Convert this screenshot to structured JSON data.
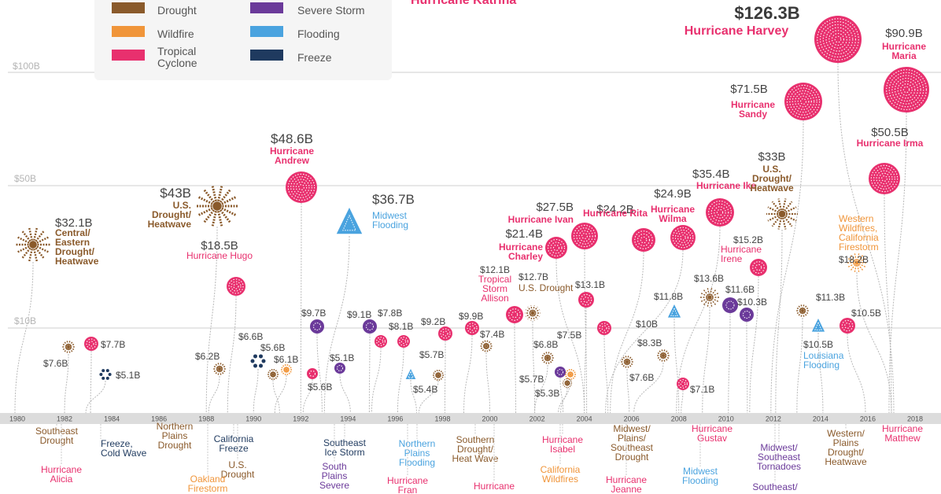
{
  "legend": {
    "items": [
      {
        "label": "Drought",
        "color": "#8a5a2b"
      },
      {
        "label": "Wildfire",
        "color": "#f0953a"
      },
      {
        "label": "Tropical Cyclone",
        "color": "#e8306e"
      },
      {
        "label": "Severe Storm",
        "color": "#6b3a9a"
      },
      {
        "label": "Flooding",
        "color": "#4aa3df"
      },
      {
        "label": "Freeze",
        "color": "#1f3a5f"
      }
    ]
  },
  "partial_top_label": "Hurricane Katrina",
  "chart_data": {
    "type": "scatter",
    "xlabel": "",
    "ylabel": "",
    "x_ticks": [
      1980,
      1982,
      1984,
      1986,
      1988,
      1990,
      1992,
      1994,
      1996,
      1998,
      2000,
      2002,
      2004,
      2006,
      2008,
      2010,
      2012,
      2014,
      2016,
      2018
    ],
    "gridlines": [
      "$10B",
      "$50B",
      "$100B"
    ],
    "events": [
      {
        "value": "$32.1B",
        "label": "Central/ Eastern Drought/ Heatwave",
        "year": 1980,
        "type": "Drought"
      },
      {
        "value": "$7.6B",
        "label": "",
        "year": 1982,
        "type": "Drought"
      },
      {
        "value": "$7.7B",
        "label": "",
        "year": 1983,
        "type": "Tropical Cyclone"
      },
      {
        "value": "$5.1B",
        "label": "",
        "year": 1983,
        "type": "Freeze"
      },
      {
        "value": "$43B",
        "label": "U.S. Drought/ Heatwave",
        "year": 1988,
        "type": "Drought"
      },
      {
        "value": "$6.2B",
        "label": "",
        "year": 1988,
        "type": "Drought"
      },
      {
        "value": "$18.5B",
        "label": "Hurricane Hugo",
        "year": 1989,
        "type": "Tropical Cyclone"
      },
      {
        "value": "$6.6B",
        "label": "",
        "year": 1990,
        "type": "Freeze"
      },
      {
        "value": "$5.6B",
        "label": "",
        "year": 1991,
        "type": "Drought"
      },
      {
        "value": "$6.1B",
        "label": "",
        "year": 1991,
        "type": "Wildfire"
      },
      {
        "value": "$48.6B",
        "label": "Hurricane Andrew",
        "year": 1992,
        "type": "Tropical Cyclone"
      },
      {
        "value": "$5.6B",
        "label": "",
        "year": 1992,
        "type": "Tropical Cyclone"
      },
      {
        "value": "$9.7B",
        "label": "",
        "year": 1993,
        "type": "Severe Storm"
      },
      {
        "value": "$36.7B",
        "label": "Midwest Flooding",
        "year": 1993,
        "type": "Flooding"
      },
      {
        "value": "$5.1B",
        "label": "",
        "year": 1994,
        "type": "Severe Storm"
      },
      {
        "value": "$9.1B",
        "label": "",
        "year": 1995,
        "type": "Severe Storm"
      },
      {
        "value": "$7.8B",
        "label": "",
        "year": 1995,
        "type": "Tropical Cyclone"
      },
      {
        "value": "$8.1B",
        "label": "",
        "year": 1996,
        "type": "Tropical Cyclone"
      },
      {
        "value": "$5.7B",
        "label": "",
        "year": 1997,
        "type": "Flooding"
      },
      {
        "value": "$5.4B",
        "label": "",
        "year": 1997,
        "type": "Drought"
      },
      {
        "value": "$9.2B",
        "label": "",
        "year": 1998,
        "type": "Tropical Cyclone"
      },
      {
        "value": "$9.9B",
        "label": "",
        "year": 1999,
        "type": "Tropical Cyclone"
      },
      {
        "value": "$7.4B",
        "label": "",
        "year": 2000,
        "type": "Drought"
      },
      {
        "value": "$12.1B",
        "label": "Tropical Storm Allison",
        "year": 2001,
        "type": "Tropical Cyclone"
      },
      {
        "value": "$12.7B",
        "label": "U.S. Drought",
        "year": 2002,
        "type": "Drought"
      },
      {
        "value": "$21.4B",
        "label": "Hurricane Charley",
        "year": 2004,
        "type": "Tropical Cyclone"
      },
      {
        "value": "$27.5B",
        "label": "Hurricane Ivan",
        "year": 2004,
        "type": "Tropical Cyclone"
      },
      {
        "value": "$6.8B",
        "label": "",
        "year": 2002,
        "type": "Drought"
      },
      {
        "value": "$7.5B",
        "label": "",
        "year": 2003,
        "type": "Wildfire"
      },
      {
        "value": "$5.7B",
        "label": "",
        "year": 2003,
        "type": "Severe Storm"
      },
      {
        "value": "$5.3B",
        "label": "",
        "year": 2003,
        "type": "Drought"
      },
      {
        "value": "$13.1B",
        "label": "",
        "year": 2004,
        "type": "Tropical Cyclone"
      },
      {
        "value": "$24.2B",
        "label": "Hurricane Rita",
        "year": 2005,
        "type": "Tropical Cyclone"
      },
      {
        "value": "$24.9B",
        "label": "Hurricane Wilma",
        "year": 2005,
        "type": "Tropical Cyclone"
      },
      {
        "value": "$10B",
        "label": "",
        "year": 2005,
        "type": "Tropical Cyclone"
      },
      {
        "value": "$8.3B",
        "label": "",
        "year": 2006,
        "type": "Drought"
      },
      {
        "value": "$7.6B",
        "label": "",
        "year": 2006,
        "type": "Drought"
      },
      {
        "value": "$11.8B",
        "label": "",
        "year": 2008,
        "type": "Flooding"
      },
      {
        "value": "$7.1B",
        "label": "",
        "year": 2008,
        "type": "Tropical Cyclone"
      },
      {
        "value": "$35.4B",
        "label": "Hurricane Ike",
        "year": 2008,
        "type": "Tropical Cyclone"
      },
      {
        "value": "$13.6B",
        "label": "",
        "year": 2009,
        "type": "Drought"
      },
      {
        "value": "$11.6B",
        "label": "",
        "year": 2010,
        "type": "Severe Storm"
      },
      {
        "value": "$10.3B",
        "label": "",
        "year": 2011,
        "type": "Severe Storm"
      },
      {
        "value": "$15.2B",
        "label": "Hurricane Irene",
        "year": 2011,
        "type": "Tropical Cyclone"
      },
      {
        "value": "$33B",
        "label": "U.S. Drought/ Heatwave",
        "year": 2012,
        "type": "Drought"
      },
      {
        "value": "$71.5B",
        "label": "Hurricane Sandy",
        "year": 2012,
        "type": "Tropical Cyclone"
      },
      {
        "value": "$11.3B",
        "label": "",
        "year": 2013,
        "type": "Drought"
      },
      {
        "value": "$10.5B",
        "label": "Louisiana Flooding",
        "year": 2014,
        "type": "Flooding"
      },
      {
        "value": "$10.5B",
        "label": "",
        "year": 2016,
        "type": "Tropical Cyclone"
      },
      {
        "value": "$18.2B",
        "label": "Western Wildfires, California Firestorm",
        "year": 2017,
        "type": "Wildfire"
      },
      {
        "value": "$126.3B",
        "label": "Hurricane Harvey",
        "year": 2017,
        "type": "Tropical Cyclone"
      },
      {
        "value": "$90.9B",
        "label": "Hurricane Maria",
        "year": 2017,
        "type": "Tropical Cyclone"
      },
      {
        "value": "$50.5B",
        "label": "Hurricane Irma",
        "year": 2017,
        "type": "Tropical Cyclone"
      }
    ],
    "bottom_labels": [
      {
        "label": "Southeast Drought",
        "type": "Drought"
      },
      {
        "label": "Hurricane Alicia",
        "type": "Tropical Cyclone"
      },
      {
        "label": "Freeze, Cold Wave",
        "type": "Freeze"
      },
      {
        "label": "Northern Plains Drought",
        "type": "Drought"
      },
      {
        "label": "California Freeze",
        "type": "Freeze"
      },
      {
        "label": "U.S. Drought",
        "type": "Drought"
      },
      {
        "label": "Oakland Firestorm",
        "type": "Wildfire"
      },
      {
        "label": "Southeast Ice Storm",
        "type": "Freeze"
      },
      {
        "label": "South Plains Severe",
        "type": "Severe Storm"
      },
      {
        "label": "Northern Plains Flooding",
        "type": "Flooding"
      },
      {
        "label": "Hurricane Fran",
        "type": "Tropical Cyclone"
      },
      {
        "label": "Southern Drought/ Heat Wave",
        "type": "Drought"
      },
      {
        "label": "Hurricane",
        "type": "Tropical Cyclone"
      },
      {
        "label": "Hurricane Isabel",
        "type": "Tropical Cyclone"
      },
      {
        "label": "California Wildfires",
        "type": "Wildfire"
      },
      {
        "label": "Midwest/ Plains/ Southeast Drought",
        "type": "Drought"
      },
      {
        "label": "Hurricane Jeanne",
        "type": "Tropical Cyclone"
      },
      {
        "label": "Hurricane Gustav",
        "type": "Tropical Cyclone"
      },
      {
        "label": "Midwest Flooding",
        "type": "Flooding"
      },
      {
        "label": "Midwest/ Southeast Tornadoes",
        "type": "Severe Storm"
      },
      {
        "label": "Southeast/",
        "type": "Severe Storm"
      },
      {
        "label": "Western/ Plains Drought/ Heatwave",
        "type": "Drought"
      },
      {
        "label": "Hurricane Matthew",
        "type": "Tropical Cyclone"
      }
    ]
  }
}
